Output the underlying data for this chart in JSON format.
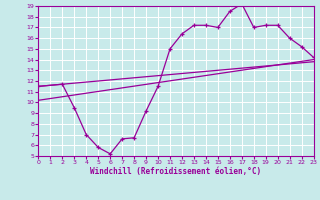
{
  "xlabel": "Windchill (Refroidissement éolien,°C)",
  "bg_color": "#c8eaea",
  "grid_color": "#ffffff",
  "line_color": "#990099",
  "xlim": [
    0,
    23
  ],
  "ylim": [
    5,
    19
  ],
  "xticks": [
    0,
    1,
    2,
    3,
    4,
    5,
    6,
    7,
    8,
    9,
    10,
    11,
    12,
    13,
    14,
    15,
    16,
    17,
    18,
    19,
    20,
    21,
    22,
    23
  ],
  "yticks": [
    5,
    6,
    7,
    8,
    9,
    10,
    11,
    12,
    13,
    14,
    15,
    16,
    17,
    18,
    19
  ],
  "zigzag_x": [
    0,
    2,
    3,
    4,
    5,
    6,
    7,
    8,
    9,
    10,
    11,
    12,
    13,
    14,
    15,
    16,
    17,
    18,
    19,
    20,
    21,
    22,
    23
  ],
  "zigzag_y": [
    11.5,
    11.7,
    9.5,
    7.0,
    5.8,
    5.2,
    6.6,
    6.7,
    9.2,
    11.5,
    15.0,
    16.4,
    17.2,
    17.2,
    17.0,
    18.5,
    19.2,
    17.0,
    17.2,
    17.2,
    16.0,
    15.2,
    14.2
  ],
  "line1_x": [
    0,
    23
  ],
  "line1_y": [
    11.5,
    13.8
  ],
  "line2_x": [
    0,
    23
  ],
  "line2_y": [
    10.2,
    14.0
  ]
}
